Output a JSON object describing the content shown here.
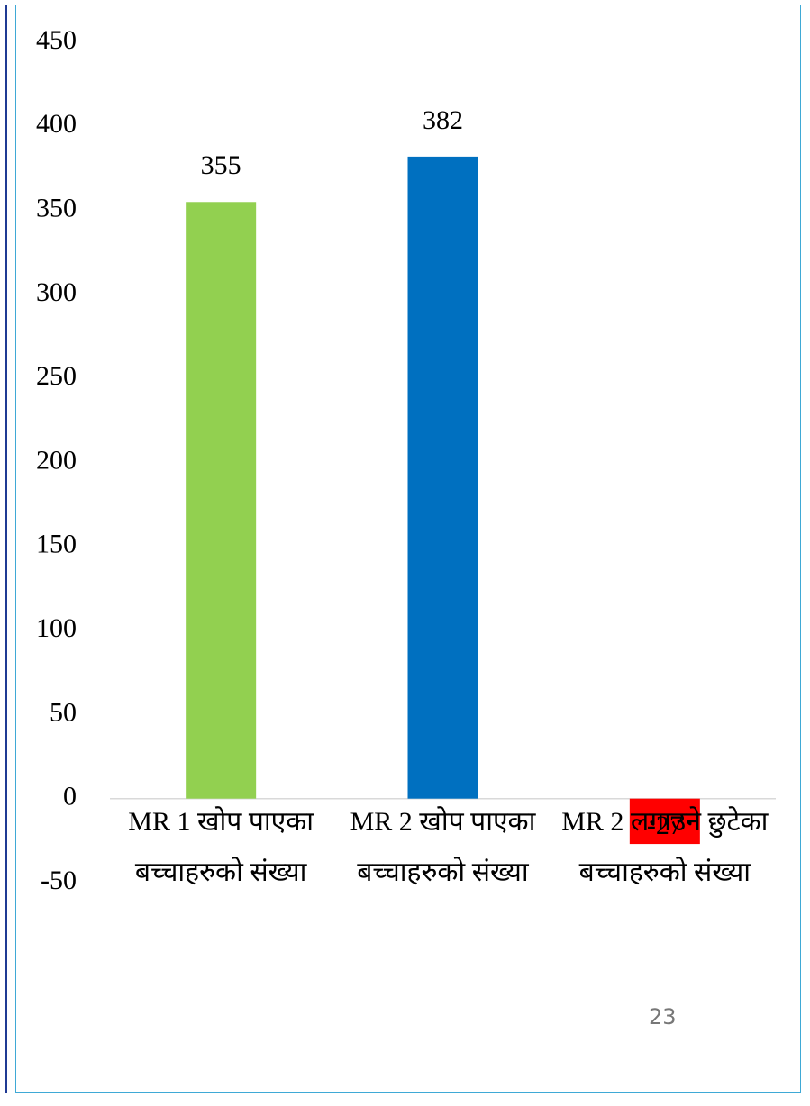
{
  "chart_data": {
    "type": "bar",
    "categories": [
      "MR 1 खोप पाएका बच्चाहरुको संख्या",
      "MR 2 खोप पाएका बच्चाहरुको संख्या",
      "MR 2 लगाउने छुटेका बच्चाहरुको संख्या"
    ],
    "values": [
      355,
      382,
      -27
    ],
    "colors": [
      "#92d050",
      "#0070c0",
      "#ff0000"
    ],
    "ylim": [
      -50,
      450
    ],
    "yticks": [
      -50,
      0,
      50,
      100,
      150,
      200,
      250,
      300,
      350,
      400,
      450
    ],
    "grid": false
  },
  "page_number": "23"
}
